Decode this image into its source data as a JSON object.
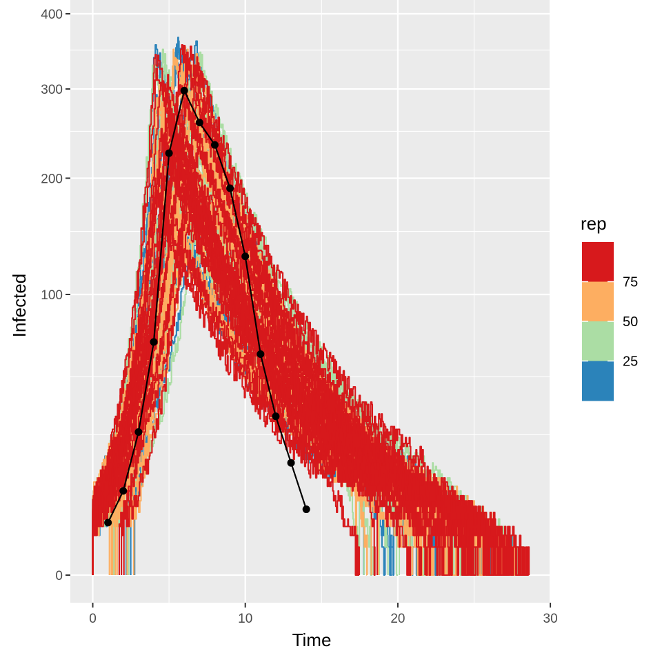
{
  "chart_data": {
    "type": "line",
    "title": "",
    "xlabel": "Time",
    "ylabel": "Infected",
    "y_scale": "sqrt",
    "xlim": [
      -1.4,
      30
    ],
    "ylim": [
      -1.6,
      400
    ],
    "x_ticks": [
      0,
      10,
      20,
      30
    ],
    "y_ticks": [
      0,
      100,
      200,
      300,
      400
    ],
    "grid": true,
    "legend": {
      "title": "rep",
      "position": "right",
      "labels": [
        "75",
        "50",
        "25"
      ],
      "bins": [
        {
          "color": "#d7191c",
          "range": "75-100"
        },
        {
          "color": "#fdae61",
          "range": "50-75"
        },
        {
          "color": "#abdda4",
          "range": "25-50"
        },
        {
          "color": "#2b83ba",
          "range": "1-25"
        }
      ]
    },
    "replicates": {
      "count": 100,
      "color_by": "rep",
      "description_values": "stochastic epidemic trajectories rising from ~5 infected near t=0 to peaks of ~200-360 around t=4-7, declining to 0 between t=17 and t=28.6"
    },
    "series": [
      {
        "name": "mean",
        "x": [
          1,
          2,
          3,
          4,
          5,
          6,
          7,
          8,
          9,
          10,
          11,
          12,
          13,
          14
        ],
        "values": [
          3.5,
          9,
          26,
          69,
          226,
          298,
          260,
          235,
          190,
          129,
          62,
          32,
          16,
          5.5
        ],
        "color": "#000000"
      }
    ]
  }
}
